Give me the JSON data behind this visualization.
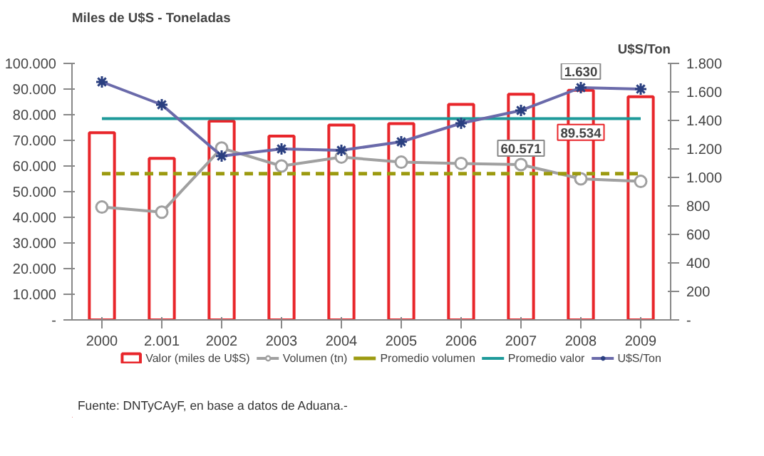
{
  "chart_data": {
    "type": "bar",
    "ylabel": "Miles de U$S - Toneladas",
    "y2label": "U$S/Ton",
    "categories": [
      "2000",
      "2.001",
      "2002",
      "2003",
      "2004",
      "2005",
      "2006",
      "2007",
      "2008",
      "2009"
    ],
    "ylim": [
      0,
      100000
    ],
    "yticks": [
      {
        "value": 0,
        "label": "-"
      },
      {
        "value": 10000,
        "label": "10.000"
      },
      {
        "value": 20000,
        "label": "20.000"
      },
      {
        "value": 30000,
        "label": "30.000"
      },
      {
        "value": 40000,
        "label": "40.000"
      },
      {
        "value": 50000,
        "label": "50.000"
      },
      {
        "value": 60000,
        "label": "60.000"
      },
      {
        "value": 70000,
        "label": "70.000"
      },
      {
        "value": 80000,
        "label": "80.000"
      },
      {
        "value": 90000,
        "label": "90.000"
      },
      {
        "value": 100000,
        "label": "100.000"
      }
    ],
    "y2lim": [
      0,
      1800
    ],
    "y2ticks": [
      {
        "value": 0,
        "label": "-"
      },
      200,
      400,
      600,
      800,
      {
        "value": 1000,
        "label": "1.000"
      },
      {
        "value": 1200,
        "label": "1.200"
      },
      {
        "value": 1400,
        "label": "1.400"
      },
      {
        "value": 1600,
        "label": "1.600"
      },
      {
        "value": 1800,
        "label": "1.800"
      }
    ],
    "series": [
      {
        "name": "Valor (miles de U$S)",
        "color": "#e8262b",
        "values": [
          73000,
          63000,
          77500,
          71700,
          76000,
          76500,
          84000,
          88000,
          89534,
          87000
        ],
        "value_labels": [
          null,
          null,
          null,
          null,
          null,
          null,
          null,
          null,
          "89.534",
          null
        ]
      },
      {
        "name": "Volumen (tn)",
        "type": "line",
        "color": "#a0a0a0",
        "marker": "circle",
        "values": [
          44000,
          42000,
          67000,
          60000,
          63500,
          61500,
          61000,
          60571,
          55000,
          54000
        ],
        "value_labels": [
          null,
          null,
          null,
          null,
          null,
          null,
          null,
          "60.571",
          null,
          null
        ]
      },
      {
        "name": "Promedio volumen",
        "type": "line",
        "color": "#9c9a10",
        "line_style": "dashed",
        "values": [
          57000,
          57000,
          57000,
          57000,
          57000,
          57000,
          57000,
          57000,
          57000,
          57000
        ]
      },
      {
        "name": "Promedio valor",
        "type": "line",
        "color": "#1e9a9a",
        "values": [
          78500,
          78500,
          78500,
          78500,
          78500,
          78500,
          78500,
          78500,
          78500,
          78500
        ]
      },
      {
        "name": "U$S/Ton",
        "type": "line",
        "axis": "y2",
        "color": "#6a6aaa",
        "marker": "cross",
        "values": [
          1670,
          1510,
          1150,
          1200,
          1190,
          1250,
          1380,
          1470,
          1630,
          1620
        ],
        "value_labels": [
          null,
          null,
          null,
          null,
          null,
          null,
          null,
          null,
          "1.630",
          null
        ]
      }
    ],
    "legend": "bottom",
    "grid": false,
    "annotations": [
      "Fuente: DNTyCAyF, en base a datos de Aduana.-"
    ]
  }
}
